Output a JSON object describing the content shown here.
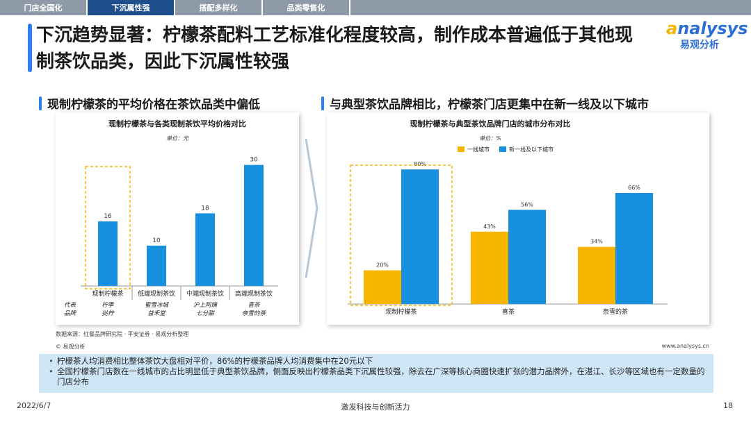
{
  "tabs": [
    "门店全国化",
    "下沉属性强",
    "搭配多样化",
    "品类零售化"
  ],
  "title": "下沉趋势显著：柠檬茶配料工艺标准化程度较高，制作成本普遍低于其他现制茶饮品类，因此下沉属性较强",
  "logo": {
    "en_prefix": "a",
    "en_rest": "nalysys",
    "cn": "易观分析"
  },
  "left_subtitle": "现制柠檬茶的平均价格在茶饮品类中偏低",
  "right_subtitle": "与典型茶饮品牌相比，柠檬茶门店更集中在新一线及以下城市",
  "colors": {
    "blue": "#1890e0",
    "yellow": "#f7b500",
    "accent": "#2f80ed",
    "tab_active": "#1f4e8c"
  },
  "chart_data": [
    {
      "type": "bar",
      "title": "现制柠檬茶与各类现制茶饮平均价格对比",
      "unit": "单位：元",
      "categories": [
        "现制柠檬茶",
        "低端现制茶饮",
        "中端现制茶饮",
        "高端现制茶饮"
      ],
      "values": [
        16,
        10,
        18,
        30
      ],
      "ylim": [
        0,
        32
      ],
      "brand_label": "代表品牌",
      "brands": [
        "柠季 挞柠",
        "蜜雪冰城 益禾堂",
        "沪上阿姨 七分甜",
        "喜茶 奈雪的茶"
      ],
      "highlight": 0
    },
    {
      "type": "bar",
      "title": "现制柠檬茶与典型茶饮品牌门店的城市分布对比",
      "unit": "单位：%",
      "categories": [
        "现制柠檬茶",
        "喜茶",
        "奈雪的茶"
      ],
      "series": [
        {
          "name": "一线城市",
          "values": [
            20,
            43,
            34
          ]
        },
        {
          "name": "新一线及以下城市",
          "values": [
            80,
            56,
            66
          ]
        }
      ],
      "ylim": [
        0,
        85
      ],
      "highlight": 0
    }
  ],
  "source": "数据来源：红餐品牌研究院 · 平安证券 · 易观分析整理",
  "copyright": "© 易观分析",
  "url": "www.analysys.cn",
  "summary": [
    "柠檬茶人均消费相比整体茶饮大盘相对平价，86%的柠檬茶品牌人均消费集中在20元以下",
    "全国柠檬茶门店数在一线城市的占比明显低于典型茶饮品牌，侧面反映出柠檬茶品类下沉属性较强，除去在广深等核心商圈快速扩张的潜力品牌外，在湛江、长沙等区域也有一定数量的门店分布"
  ],
  "date": "2022/6/7",
  "slogan": "激发科技与创新活力",
  "page": "18"
}
